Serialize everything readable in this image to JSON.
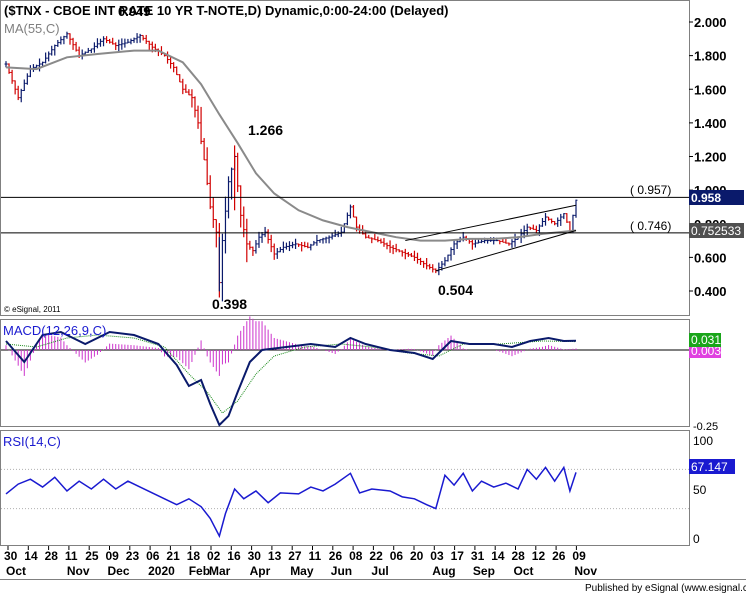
{
  "header": {
    "title": "($TNX - CBOE INT RATE 10 YR T-NOTE,D) Dynamic,0:00-24:00 (Delayed)",
    "overlay_value": "0.949",
    "ma_label": "MA(55,C)"
  },
  "footer": {
    "copyright": "© eSignal, 2011",
    "published": "Published by eSignal (www.esignal.com)"
  },
  "chart_data": [
    {
      "type": "line",
      "panel": "price",
      "series": [
        {
          "name": "$TNX",
          "kind": "ohlc"
        },
        {
          "name": "MA(55,C)",
          "kind": "line",
          "color": "#8a8a8a"
        }
      ],
      "ylim": [
        0.3,
        2.1
      ],
      "yticks": [
        "2.000",
        "1.800",
        "1.600",
        "1.400",
        "1.200",
        "1.000",
        "0.800",
        "0.600",
        "0.400"
      ],
      "last_value": "0.958",
      "level_labels": [
        "0.752533"
      ],
      "horizontal_levels": [
        {
          "value": 0.957,
          "label": "( 0.957)"
        },
        {
          "value": 0.746,
          "label": "( 0.746)"
        }
      ],
      "annotations": [
        "1.266",
        "0.398",
        "0.504"
      ],
      "price_path": [
        [
          0,
          1.75
        ],
        [
          4,
          1.55
        ],
        [
          8,
          1.72
        ],
        [
          12,
          1.76
        ],
        [
          16,
          1.86
        ],
        [
          20,
          1.93
        ],
        [
          24,
          1.8
        ],
        [
          28,
          1.84
        ],
        [
          32,
          1.9
        ],
        [
          36,
          1.86
        ],
        [
          40,
          1.88
        ],
        [
          44,
          1.92
        ],
        [
          48,
          1.85
        ],
        [
          52,
          1.8
        ],
        [
          55,
          1.73
        ],
        [
          58,
          1.6
        ],
        [
          61,
          1.55
        ],
        [
          63,
          1.4
        ],
        [
          65,
          1.18
        ],
        [
          67,
          0.9
        ],
        [
          69,
          0.75
        ],
        [
          70,
          0.45
        ],
        [
          71,
          0.7
        ],
        [
          73,
          1.05
        ],
        [
          75,
          1.2
        ],
        [
          77,
          0.85
        ],
        [
          79,
          0.68
        ],
        [
          81,
          0.64
        ],
        [
          83,
          0.72
        ],
        [
          85,
          0.75
        ],
        [
          88,
          0.62
        ],
        [
          91,
          0.66
        ],
        [
          95,
          0.68
        ],
        [
          99,
          0.66
        ],
        [
          102,
          0.7
        ],
        [
          106,
          0.72
        ],
        [
          110,
          0.75
        ],
        [
          113,
          0.9
        ],
        [
          115,
          0.78
        ],
        [
          118,
          0.72
        ],
        [
          122,
          0.7
        ],
        [
          126,
          0.66
        ],
        [
          130,
          0.63
        ],
        [
          134,
          0.6
        ],
        [
          138,
          0.55
        ],
        [
          141,
          0.52
        ],
        [
          144,
          0.58
        ],
        [
          147,
          0.68
        ],
        [
          150,
          0.72
        ],
        [
          153,
          0.68
        ],
        [
          157,
          0.7
        ],
        [
          161,
          0.7
        ],
        [
          165,
          0.68
        ],
        [
          168,
          0.72
        ],
        [
          171,
          0.78
        ],
        [
          174,
          0.76
        ],
        [
          177,
          0.84
        ],
        [
          180,
          0.8
        ],
        [
          183,
          0.86
        ],
        [
          185,
          0.76
        ],
        [
          187,
          0.94
        ]
      ],
      "ma_path": [
        [
          0,
          1.73
        ],
        [
          10,
          1.72
        ],
        [
          20,
          1.79
        ],
        [
          30,
          1.81
        ],
        [
          42,
          1.83
        ],
        [
          50,
          1.83
        ],
        [
          58,
          1.76
        ],
        [
          64,
          1.63
        ],
        [
          70,
          1.45
        ],
        [
          76,
          1.28
        ],
        [
          82,
          1.1
        ],
        [
          88,
          0.98
        ],
        [
          96,
          0.88
        ],
        [
          104,
          0.82
        ],
        [
          112,
          0.78
        ],
        [
          120,
          0.75
        ],
        [
          128,
          0.72
        ],
        [
          136,
          0.7
        ],
        [
          144,
          0.7
        ],
        [
          152,
          0.71
        ],
        [
          160,
          0.71
        ],
        [
          168,
          0.72
        ],
        [
          176,
          0.74
        ],
        [
          187,
          0.76
        ]
      ],
      "channel": {
        "upper": [
          [
            131,
            0.7
          ],
          [
            187,
            0.91
          ]
        ],
        "lower": [
          [
            141,
            0.52
          ],
          [
            187,
            0.76
          ]
        ]
      }
    },
    {
      "type": "line",
      "panel": "macd",
      "title": "MACD(12,26,9,C)",
      "values_shown": [
        "0.031",
        "0.003"
      ],
      "ytick": "-0.25",
      "macd_path": [
        [
          0,
          0.03
        ],
        [
          6,
          -0.04
        ],
        [
          12,
          0.05
        ],
        [
          18,
          0.06
        ],
        [
          26,
          0.02
        ],
        [
          34,
          0.06
        ],
        [
          42,
          0.05
        ],
        [
          50,
          0.02
        ],
        [
          56,
          -0.05
        ],
        [
          60,
          -0.12
        ],
        [
          64,
          -0.1
        ],
        [
          67,
          -0.18
        ],
        [
          70,
          -0.25
        ],
        [
          73,
          -0.22
        ],
        [
          76,
          -0.14
        ],
        [
          80,
          -0.04
        ],
        [
          84,
          0.0
        ],
        [
          92,
          0.01
        ],
        [
          100,
          0.02
        ],
        [
          108,
          0.01
        ],
        [
          113,
          0.04
        ],
        [
          118,
          0.02
        ],
        [
          126,
          0.0
        ],
        [
          134,
          -0.01
        ],
        [
          140,
          -0.03
        ],
        [
          146,
          0.03
        ],
        [
          152,
          0.02
        ],
        [
          160,
          0.02
        ],
        [
          166,
          0.01
        ],
        [
          172,
          0.03
        ],
        [
          178,
          0.04
        ],
        [
          183,
          0.03
        ],
        [
          187,
          0.031
        ]
      ],
      "signal_path": [
        [
          0,
          0.02
        ],
        [
          10,
          0.01
        ],
        [
          20,
          0.04
        ],
        [
          30,
          0.05
        ],
        [
          42,
          0.04
        ],
        [
          52,
          0.01
        ],
        [
          60,
          -0.08
        ],
        [
          66,
          -0.14
        ],
        [
          71,
          -0.21
        ],
        [
          76,
          -0.17
        ],
        [
          82,
          -0.08
        ],
        [
          88,
          -0.02
        ],
        [
          98,
          0.01
        ],
        [
          110,
          0.02
        ],
        [
          120,
          0.01
        ],
        [
          132,
          -0.01
        ],
        [
          142,
          -0.02
        ],
        [
          150,
          0.02
        ],
        [
          162,
          0.02
        ],
        [
          176,
          0.03
        ],
        [
          187,
          0.028
        ]
      ]
    },
    {
      "type": "line",
      "panel": "rsi",
      "title": "RSI(14,C)",
      "value_shown": "67.147",
      "ylim": [
        0,
        100
      ],
      "yticks": [
        "100",
        "50",
        "0"
      ],
      "rsi_path": [
        [
          0,
          45
        ],
        [
          4,
          55
        ],
        [
          8,
          60
        ],
        [
          12,
          52
        ],
        [
          16,
          62
        ],
        [
          20,
          48
        ],
        [
          24,
          58
        ],
        [
          28,
          50
        ],
        [
          32,
          60
        ],
        [
          36,
          50
        ],
        [
          40,
          58
        ],
        [
          44,
          52
        ],
        [
          48,
          46
        ],
        [
          52,
          40
        ],
        [
          56,
          34
        ],
        [
          60,
          40
        ],
        [
          64,
          32
        ],
        [
          67,
          20
        ],
        [
          70,
          2
        ],
        [
          72,
          25
        ],
        [
          75,
          50
        ],
        [
          78,
          40
        ],
        [
          82,
          48
        ],
        [
          86,
          36
        ],
        [
          90,
          46
        ],
        [
          96,
          45
        ],
        [
          100,
          52
        ],
        [
          104,
          48
        ],
        [
          108,
          55
        ],
        [
          113,
          66
        ],
        [
          116,
          46
        ],
        [
          120,
          50
        ],
        [
          126,
          48
        ],
        [
          130,
          42
        ],
        [
          134,
          40
        ],
        [
          138,
          34
        ],
        [
          141,
          30
        ],
        [
          144,
          64
        ],
        [
          147,
          54
        ],
        [
          150,
          66
        ],
        [
          153,
          48
        ],
        [
          156,
          58
        ],
        [
          160,
          52
        ],
        [
          164,
          56
        ],
        [
          168,
          50
        ],
        [
          171,
          70
        ],
        [
          174,
          60
        ],
        [
          177,
          72
        ],
        [
          180,
          58
        ],
        [
          183,
          72
        ],
        [
          185,
          48
        ],
        [
          187,
          67
        ]
      ]
    }
  ],
  "x_axis": {
    "day_ticks": [
      "30",
      "14",
      "28",
      "11",
      "25",
      "09",
      "23",
      "06",
      "21",
      "18",
      "02",
      "16",
      "30",
      "13",
      "27",
      "11",
      "26",
      "08",
      "22",
      "06",
      "20",
      "03",
      "17",
      "31",
      "14",
      "28",
      "12",
      "26",
      "09"
    ],
    "month_labels": [
      "Oct",
      "Nov",
      "Dec",
      "2020",
      "Feb",
      "Mar",
      "Apr",
      "May",
      "Jun",
      "Jul",
      "Aug",
      "Sep",
      "Oct",
      "Nov"
    ],
    "grid_ticks": [
      2020,
      1
    ]
  },
  "colors": {
    "up_bar": "#0a1a6b",
    "down_bar": "#d10000",
    "ma": "#8a8a8a",
    "macd": "#0a1a6b",
    "macd_hist": "#cc33cc",
    "macd_badge": "#1aa51a",
    "macd_signal_badge": "#e040e0",
    "rsi": "#1a1ad0",
    "last_badge": "#0a1a6b",
    "level_badge": "#505050"
  }
}
